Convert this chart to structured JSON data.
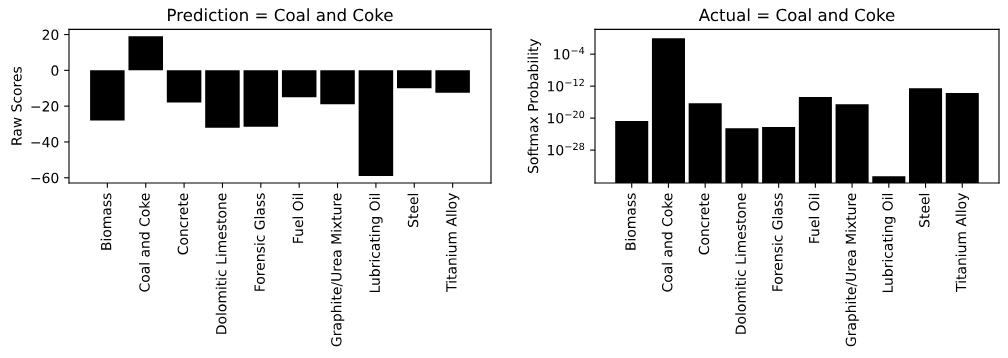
{
  "chart_data": [
    {
      "type": "bar",
      "title": "Prediction = Coal and Coke",
      "ylabel": "Raw Scores",
      "categories": [
        "Biomass",
        "Coal and Coke",
        "Concrete",
        "Dolomitic Limestone",
        "Forensic Glass",
        "Fuel Oil",
        "Graphite/Urea Mixture",
        "Lubricating Oil",
        "Steel",
        "Titanium Alloy"
      ],
      "values": [
        -28,
        19,
        -18,
        -32,
        -31.5,
        -15,
        -19,
        -59,
        -10,
        -12.5
      ],
      "color": "#000000",
      "ylim": [
        -62.9,
        22.9
      ],
      "yticks": [
        -60,
        -40,
        -20,
        0,
        20
      ],
      "grid": false
    },
    {
      "type": "bar",
      "title": "Actual = Coal and Coke",
      "ylabel": "Softmax Probability",
      "log": true,
      "categories": [
        "Biomass",
        "Coal and Coke",
        "Concrete",
        "Dolomitic Limestone",
        "Forensic Glass",
        "Fuel Oil",
        "Graphite/Urea Mixture",
        "Lubricating Oil",
        "Steel",
        "Titanium Alloy"
      ],
      "values": [
        2e-21,
        1,
        5e-17,
        3e-23,
        6e-23,
        2e-15,
        3e-17,
        3e-35,
        3e-13,
        2e-14
      ],
      "color": "#000000",
      "ylim": [
        6e-37,
        160
      ],
      "yticks": [
        {
          "value": 1e-28,
          "label": "10$^{−28}$"
        },
        {
          "value": 1e-20,
          "label": "10$^{−20}$"
        },
        {
          "value": 1e-12,
          "label": "10$^{−12}$"
        },
        {
          "value": 0.0001,
          "label": "10$^{−4}$"
        }
      ],
      "grid": false
    }
  ]
}
